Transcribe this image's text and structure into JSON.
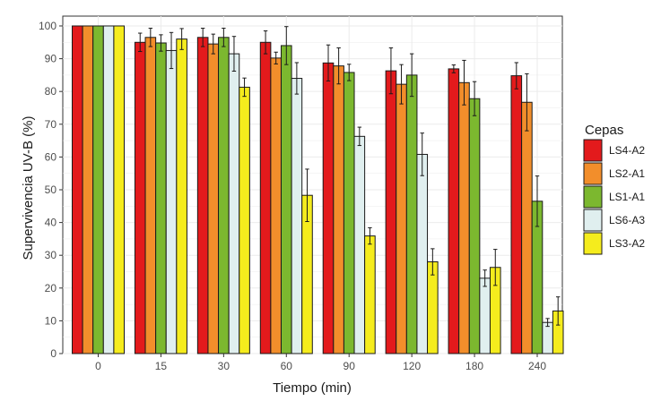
{
  "chart_data": {
    "type": "bar",
    "xlabel": "Tiempo (min)",
    "ylabel": "Supervivencia UV-B (%)",
    "categories": [
      "0",
      "15",
      "30",
      "60",
      "90",
      "120",
      "180",
      "240"
    ],
    "ylim": [
      0,
      103
    ],
    "yticks": [
      0,
      10,
      20,
      30,
      40,
      50,
      60,
      70,
      80,
      90,
      100
    ],
    "grid": true,
    "legend": {
      "title": "Cepas",
      "placement": "right"
    },
    "series": [
      {
        "name": "LS4-A2",
        "color": "#e31a1c",
        "values": [
          100,
          95,
          96.5,
          95,
          88.7,
          86.3,
          86.9,
          84.8
        ],
        "errors": [
          0,
          2.8,
          2.8,
          3.5,
          5.5,
          7.0,
          1.2,
          4.0
        ]
      },
      {
        "name": "LS2-A1",
        "color": "#f28e2b",
        "values": [
          100,
          96.5,
          94.5,
          90.2,
          87.8,
          82.2,
          82.7,
          76.7
        ],
        "errors": [
          0,
          2.8,
          3.0,
          1.8,
          5.5,
          6.0,
          6.8,
          8.7
        ]
      },
      {
        "name": "LS1-A1",
        "color": "#7cb82f",
        "values": [
          100,
          94.8,
          96.5,
          94,
          85.8,
          85,
          77.8,
          46.5
        ],
        "errors": [
          0,
          2.5,
          2.8,
          5.8,
          2.5,
          6.5,
          5.2,
          7.7
        ]
      },
      {
        "name": "LS6-A3",
        "color": "#e0efef",
        "values": [
          100,
          92.5,
          91.5,
          84,
          66.3,
          60.8,
          23,
          9.5
        ],
        "errors": [
          0,
          5.5,
          5.3,
          4.8,
          2.8,
          6.5,
          2.5,
          1.2
        ]
      },
      {
        "name": "LS3-A2",
        "color": "#f5ec1d",
        "values": [
          100,
          96,
          81.3,
          48.3,
          35.9,
          28,
          26.3,
          13
        ],
        "errors": [
          0,
          3.2,
          2.8,
          8.0,
          2.5,
          4.0,
          5.5,
          4.3
        ]
      }
    ]
  }
}
